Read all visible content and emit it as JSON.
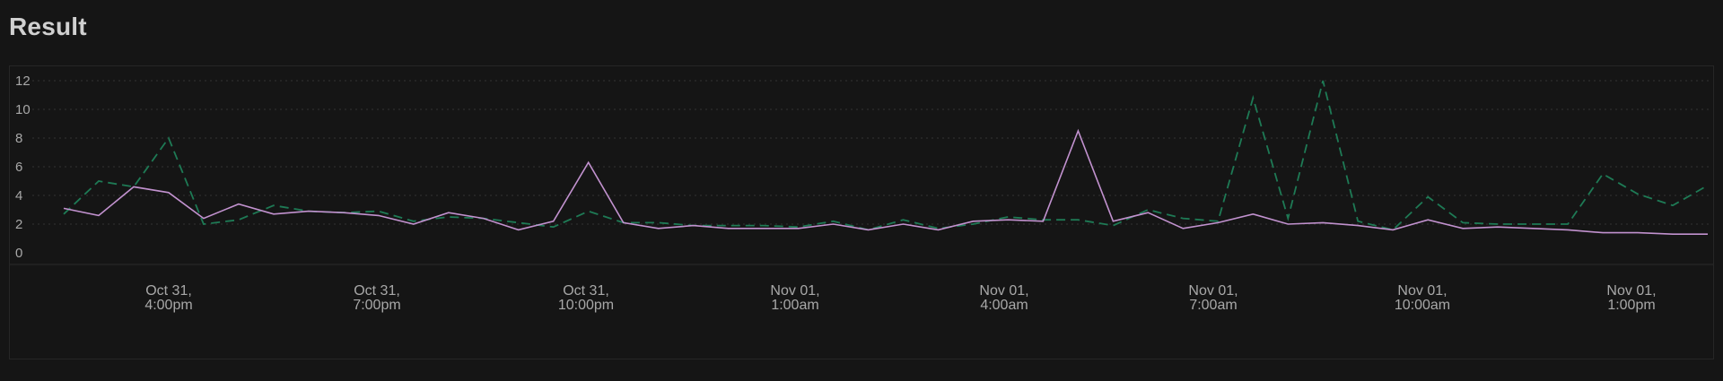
{
  "header": {
    "title": "Result"
  },
  "colors": {
    "background": "#151515",
    "grid": "#333333",
    "axis_text": "#a8a8a8",
    "series_solid": "#c292cf",
    "series_dashed": "#1e7a55"
  },
  "chart_data": {
    "type": "line",
    "title": "",
    "xlabel": "",
    "ylabel": "",
    "ylim": [
      0,
      12
    ],
    "yticks": [
      0,
      2,
      4,
      6,
      8,
      10,
      12
    ],
    "y_tick_labels": [
      "0",
      "2",
      "4",
      "6",
      "8",
      "10",
      "12"
    ],
    "grid": "horizontal dashed",
    "legend": "none",
    "x_tick_labels": [
      {
        "line1": "Oct 31,",
        "line2": "4:00pm"
      },
      {
        "line1": "Oct 31,",
        "line2": "7:00pm"
      },
      {
        "line1": "Oct 31,",
        "line2": "10:00pm"
      },
      {
        "line1": "Nov 01,",
        "line2": "1:00am"
      },
      {
        "line1": "Nov 01,",
        "line2": "4:00am"
      },
      {
        "line1": "Nov 01,",
        "line2": "7:00am"
      },
      {
        "line1": "Nov 01,",
        "line2": "10:00am"
      },
      {
        "line1": "Nov 01,",
        "line2": "1:00pm"
      }
    ],
    "x": [
      "Oct 31, 2:30pm",
      "Oct 31, 3:00pm",
      "Oct 31, 3:30pm",
      "Oct 31, 4:00pm",
      "Oct 31, 4:30pm",
      "Oct 31, 5:00pm",
      "Oct 31, 5:30pm",
      "Oct 31, 6:00pm",
      "Oct 31, 6:30pm",
      "Oct 31, 7:00pm",
      "Oct 31, 7:30pm",
      "Oct 31, 8:00pm",
      "Oct 31, 8:30pm",
      "Oct 31, 9:00pm",
      "Oct 31, 9:30pm",
      "Oct 31, 10:00pm",
      "Oct 31, 10:30pm",
      "Oct 31, 11:00pm",
      "Oct 31, 11:30pm",
      "Nov 01, 12:00am",
      "Nov 01, 12:30am",
      "Nov 01, 1:00am",
      "Nov 01, 1:30am",
      "Nov 01, 2:00am",
      "Nov 01, 2:30am",
      "Nov 01, 3:00am",
      "Nov 01, 3:30am",
      "Nov 01, 4:00am",
      "Nov 01, 4:30am",
      "Nov 01, 5:00am",
      "Nov 01, 5:30am",
      "Nov 01, 6:00am",
      "Nov 01, 6:30am",
      "Nov 01, 7:00am",
      "Nov 01, 7:30am",
      "Nov 01, 8:00am",
      "Nov 01, 8:30am",
      "Nov 01, 9:00am",
      "Nov 01, 9:30am",
      "Nov 01, 10:00am",
      "Nov 01, 10:30am",
      "Nov 01, 11:00am",
      "Nov 01, 11:30am",
      "Nov 01, 12:00pm",
      "Nov 01, 12:30pm",
      "Nov 01, 1:00pm",
      "Nov 01, 1:30pm",
      "Nov 01, 2:00pm"
    ],
    "series": [
      {
        "style": "solid",
        "color": "#c292cf",
        "values": [
          3.1,
          2.6,
          4.6,
          4.2,
          2.4,
          3.4,
          2.7,
          2.9,
          2.8,
          2.6,
          2.0,
          2.8,
          2.4,
          1.6,
          2.2,
          6.3,
          2.1,
          1.7,
          1.9,
          1.7,
          1.7,
          1.7,
          2.0,
          1.6,
          2.0,
          1.6,
          2.2,
          2.3,
          2.2,
          8.5,
          2.2,
          2.8,
          1.7,
          2.1,
          2.7,
          2.0,
          2.1,
          1.9,
          1.6,
          2.3,
          1.7,
          1.8,
          1.7,
          1.6,
          1.4,
          1.4,
          1.3,
          1.3
        ]
      },
      {
        "style": "dashed",
        "color": "#1e7a55",
        "values": [
          2.7,
          5.0,
          4.6,
          8.0,
          2.0,
          2.3,
          3.3,
          2.9,
          2.8,
          2.9,
          2.2,
          2.5,
          2.4,
          2.1,
          1.8,
          2.9,
          2.1,
          2.1,
          1.9,
          1.9,
          1.9,
          1.8,
          2.2,
          1.6,
          2.3,
          1.7,
          2.0,
          2.5,
          2.3,
          2.3,
          1.9,
          3.0,
          2.4,
          2.2,
          10.8,
          2.4,
          12.0,
          2.2,
          1.6,
          3.9,
          2.1,
          2.0,
          2.0,
          2.0,
          5.5,
          4.1,
          3.3,
          4.7
        ]
      }
    ]
  }
}
